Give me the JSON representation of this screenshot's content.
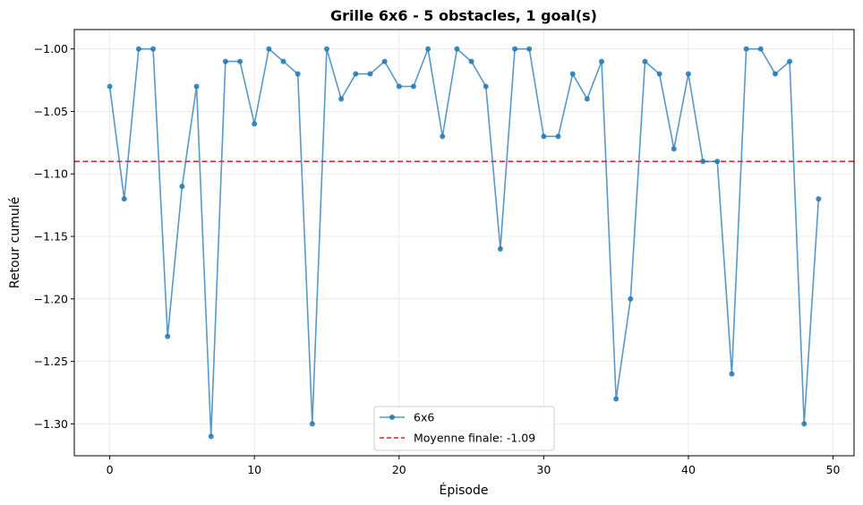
{
  "chart_data": {
    "type": "line",
    "title": "Grille 6x6 - 5 obstacles, 1 goal(s)",
    "xlabel": "Épisode",
    "ylabel": "Retour cumulé",
    "xlim": [
      -2.45,
      51.45
    ],
    "ylim": [
      -1.3255,
      -0.9845
    ],
    "x_ticks": [
      0,
      10,
      20,
      30,
      40,
      50
    ],
    "y_ticks": [
      -1.3,
      -1.25,
      -1.2,
      -1.15,
      -1.1,
      -1.05,
      -1.0
    ],
    "y_tick_labels": [
      "−1.30",
      "−1.25",
      "−1.20",
      "−1.15",
      "−1.10",
      "−1.05",
      "−1.00"
    ],
    "grid": true,
    "legend_position": "bottom-center",
    "series": [
      {
        "name": "6x6",
        "color": "#1f77b4",
        "marker": "circle",
        "x": [
          0,
          1,
          2,
          3,
          4,
          5,
          6,
          7,
          8,
          9,
          10,
          11,
          12,
          13,
          14,
          15,
          16,
          17,
          18,
          19,
          20,
          21,
          22,
          23,
          24,
          25,
          26,
          27,
          28,
          29,
          30,
          31,
          32,
          33,
          34,
          35,
          36,
          37,
          38,
          39,
          40,
          41,
          42,
          43,
          44,
          45,
          46,
          47,
          48,
          49
        ],
        "y": [
          -1.03,
          -1.12,
          -1.0,
          -1.0,
          -1.23,
          -1.11,
          -1.03,
          -1.31,
          -1.01,
          -1.01,
          -1.06,
          -1.0,
          -1.01,
          -1.02,
          -1.3,
          -1.0,
          -1.04,
          -1.02,
          -1.02,
          -1.01,
          -1.03,
          -1.03,
          -1.0,
          -1.07,
          -1.0,
          -1.01,
          -1.03,
          -1.16,
          -1.0,
          -1.0,
          -1.07,
          -1.07,
          -1.02,
          -1.04,
          -1.01,
          -1.28,
          -1.2,
          -1.01,
          -1.02,
          -1.08,
          -1.02,
          -1.09,
          -1.09,
          -1.26,
          -1.0,
          -1.0,
          -1.02,
          -1.01,
          -1.3,
          -1.12
        ]
      }
    ],
    "reference_line": {
      "name": "Moyenne finale: -1.09",
      "y": -1.09,
      "color": "#d62728",
      "style": "dashed"
    }
  }
}
